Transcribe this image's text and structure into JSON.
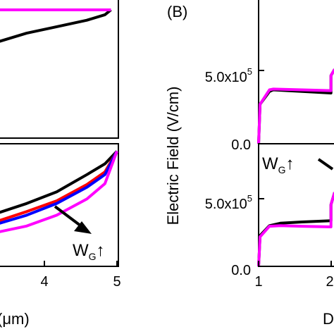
{
  "chart_data": [
    {
      "panel": "top-left",
      "type": "line",
      "title": "",
      "xlabel": "",
      "ylabel": "",
      "xlim": [
        3.0,
        5.0
      ],
      "series": [
        {
          "color": "#000000",
          "x": [
            3.0,
            3.5,
            4.0,
            4.5,
            4.8,
            4.9
          ],
          "y": [
            0.0,
            0.28,
            0.48,
            0.68,
            0.85,
            1.0
          ]
        },
        {
          "color": "#ff00ff",
          "x": [
            3.0,
            3.5,
            4.0,
            4.5,
            4.8,
            4.9
          ],
          "y": [
            1.0,
            1.0,
            1.0,
            1.0,
            1.0,
            1.0
          ]
        }
      ]
    },
    {
      "panel": "bottom-left",
      "type": "line",
      "title": "",
      "xlabel": "(μm)",
      "ylabel": "",
      "xlim": [
        3.0,
        5.0
      ],
      "xticks": [
        "4",
        "5"
      ],
      "series": [
        {
          "color": "#000000",
          "x": [
            3.0,
            3.5,
            4.0,
            4.5,
            4.8,
            5.0
          ],
          "y": [
            0.29,
            0.4,
            0.53,
            0.72,
            0.84,
            0.98
          ]
        },
        {
          "color": "#ff0000",
          "x": [
            3.0,
            3.5,
            4.0,
            4.5,
            4.8,
            5.0
          ],
          "y": [
            0.2,
            0.31,
            0.43,
            0.61,
            0.75,
            0.98
          ]
        },
        {
          "color": "#0000ff",
          "x": [
            3.0,
            3.5,
            4.0,
            4.5,
            4.8,
            5.0
          ],
          "y": [
            0.17,
            0.27,
            0.4,
            0.58,
            0.72,
            0.98
          ]
        },
        {
          "color": "#ff00ff",
          "x": [
            3.0,
            3.5,
            4.0,
            4.5,
            4.8,
            5.0
          ],
          "y": [
            0.08,
            0.15,
            0.27,
            0.45,
            0.62,
            0.98
          ]
        }
      ],
      "annotation": {
        "main": "W",
        "sub": "G",
        "arrow": "↑"
      }
    },
    {
      "panel": "top-right",
      "type": "line",
      "panel_label": "(B)",
      "title": "",
      "xlabel": "",
      "ylabel": "Electric Field (V/cm)",
      "xlim": [
        1.0,
        2.1
      ],
      "ylim": [
        0,
        800000
      ],
      "ytick_labels": [
        {
          "value": 500000,
          "mantissa": "5.0x10",
          "exp": "5"
        },
        {
          "value": 0,
          "mantissa": "0.0",
          "exp": ""
        }
      ],
      "series": [
        {
          "color": "#000000",
          "x": [
            1.0,
            1.02,
            1.15,
            1.2,
            1.6,
            2.0,
            2.0,
            2.05
          ],
          "y": [
            0,
            250000,
            330000,
            340000,
            330000,
            320000,
            430000,
            470000
          ]
        },
        {
          "color": "#ff00ff",
          "x": [
            1.0,
            1.02,
            1.15,
            1.2,
            1.6,
            2.0,
            2.0,
            2.05
          ],
          "y": [
            0,
            250000,
            340000,
            345000,
            340000,
            335000,
            430000,
            470000
          ]
        }
      ],
      "annotation": {
        "main": "W",
        "sub": "G",
        "arrow": "↑"
      }
    },
    {
      "panel": "bottom-right",
      "type": "line",
      "title": "",
      "xlabel": "D",
      "ylabel": "",
      "xlim": [
        1.0,
        2.1
      ],
      "ylim": [
        0,
        800000
      ],
      "xticks": [
        "1",
        "2"
      ],
      "ytick_labels": [
        {
          "value": 500000,
          "mantissa": "5.0x10",
          "exp": "5"
        },
        {
          "value": 0,
          "mantissa": "0.0",
          "exp": ""
        }
      ],
      "series": [
        {
          "color": "#000000",
          "x": [
            1.0,
            1.02,
            1.15,
            1.3,
            1.6,
            2.0,
            2.0,
            2.05
          ],
          "y": [
            0,
            250000,
            330000,
            350000,
            360000,
            370000,
            500000,
            600000
          ]
        },
        {
          "color": "#ff00ff",
          "x": [
            1.0,
            1.02,
            1.15,
            1.3,
            1.6,
            2.0,
            2.0,
            2.05
          ],
          "y": [
            0,
            240000,
            325000,
            330000,
            325000,
            320000,
            500000,
            600000
          ]
        }
      ]
    }
  ]
}
